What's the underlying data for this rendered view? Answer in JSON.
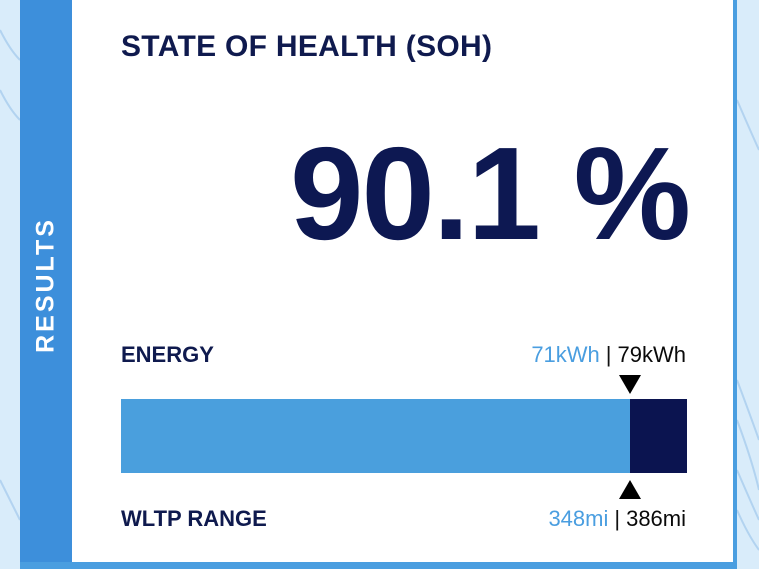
{
  "side": {
    "label": "RESULTS"
  },
  "card": {
    "title": "STATE OF HEALTH (SOH)"
  },
  "soh": {
    "value": "90.1 %"
  },
  "energy": {
    "label": "ENERGY",
    "current": "71kWh",
    "separator": "|",
    "original": "79kWh"
  },
  "range": {
    "label": "WLTP RANGE",
    "current": "348mi",
    "separator": "|",
    "original": "386mi"
  },
  "bar": {
    "fill_fraction": 0.9
  },
  "colors": {
    "accent": "#4a9ee0",
    "dark": "#0d1852",
    "stripe": "#3d8fdb"
  },
  "icons": {
    "top_marker": "triangle-down-icon",
    "bottom_marker": "triangle-up-icon"
  }
}
